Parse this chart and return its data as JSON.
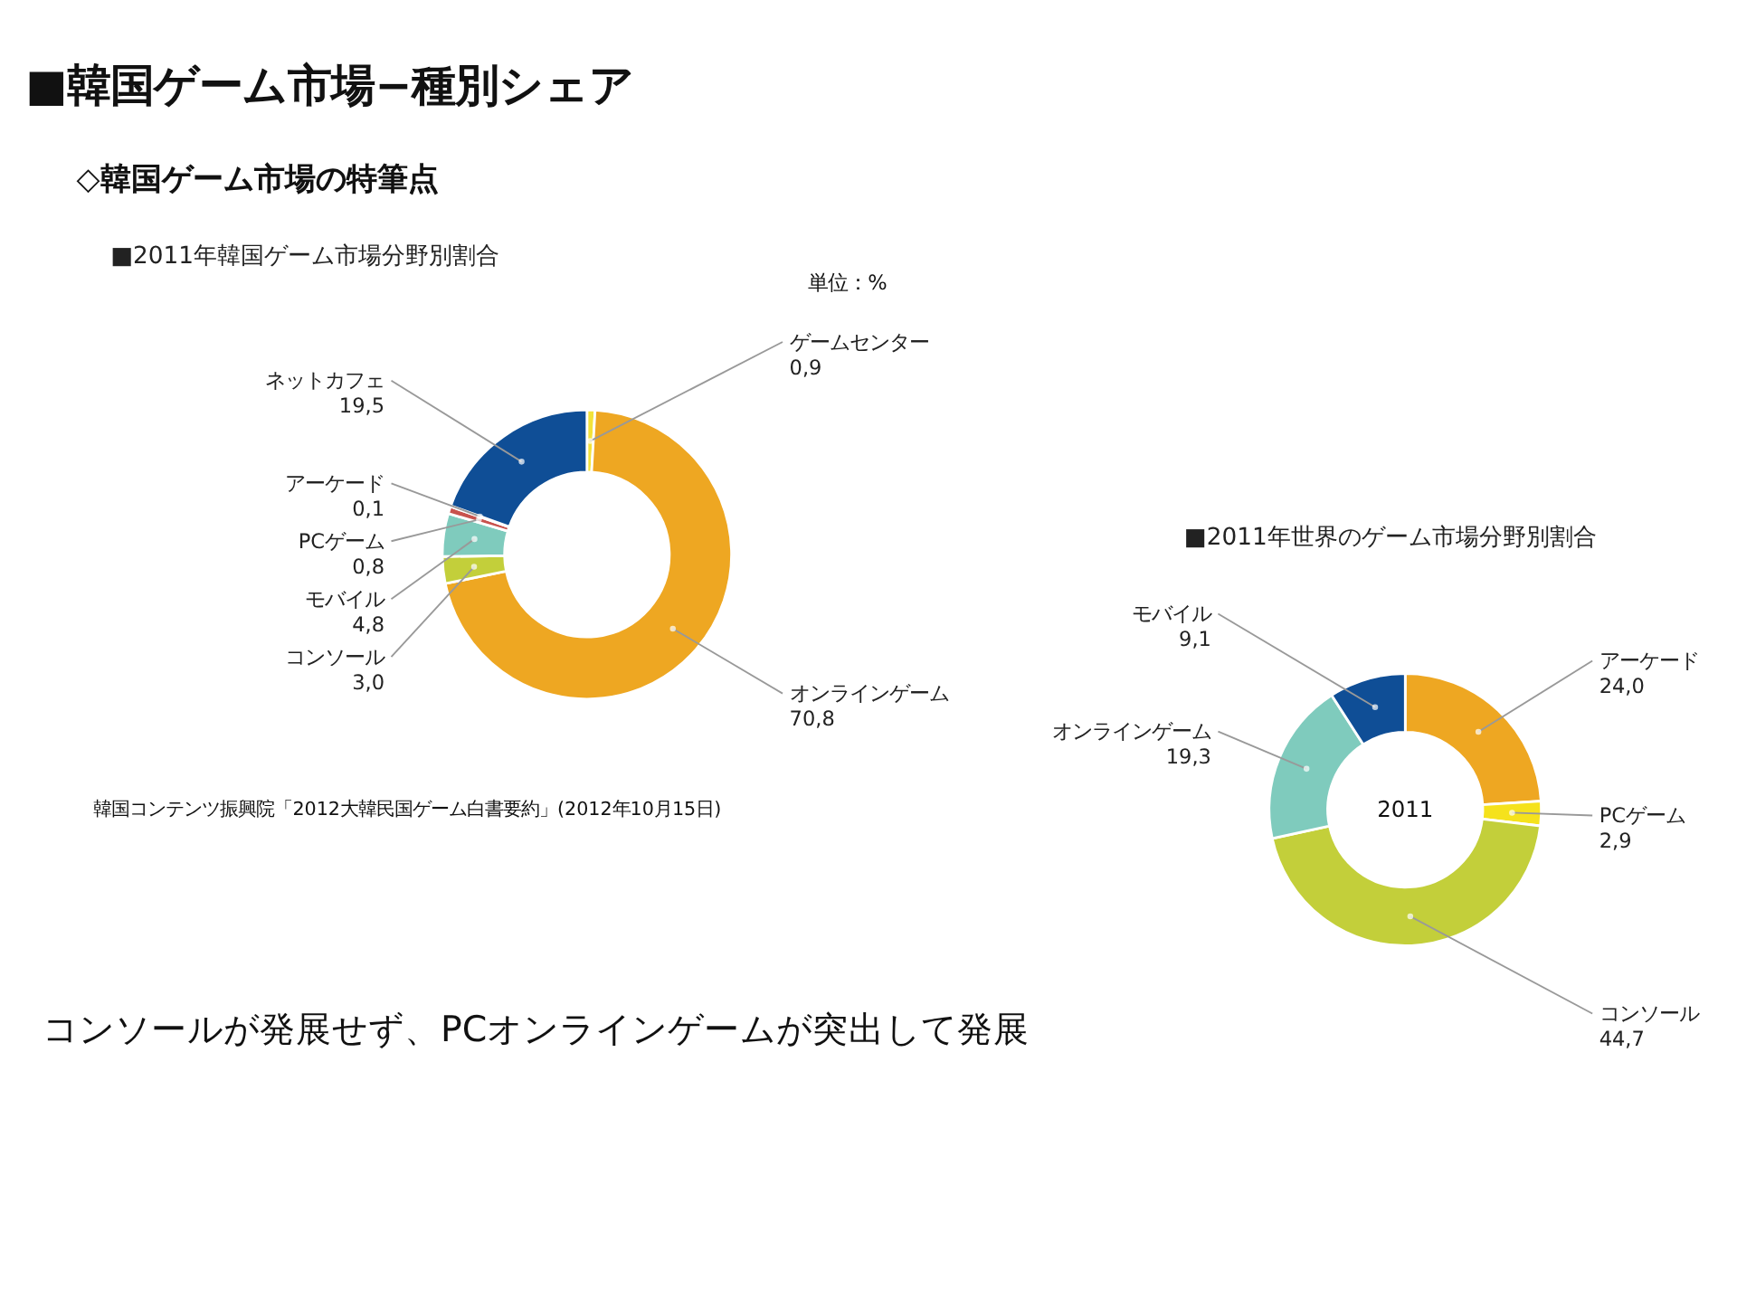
{
  "chart_data": [
    {
      "type": "donut",
      "title": "■2011年韓国ゲーム市場分野別割合",
      "categories": [
        "ゲームセンター",
        "オンラインゲーム",
        "コンソール",
        "モバイル",
        "PCゲーム",
        "アーケード",
        "ネットカフェ"
      ],
      "values": [
        0.9,
        70.8,
        3.0,
        4.8,
        0.8,
        0.1,
        19.5
      ],
      "value_labels": [
        "0,9",
        "70,8",
        "3,0",
        "4,8",
        "0,8",
        "0,1",
        "19,5"
      ],
      "colors": [
        "#f2e33a",
        "#eea722",
        "#c3cf3a",
        "#7fcbbd",
        "#c8524d",
        "#9bb4d0",
        "#0f4e96"
      ],
      "annotations": [
        "■韓国ゲーム市場−種別シェア",
        "◇韓国ゲーム市場の特筆点",
        "単位：%",
        "韓国コンテンツ振興院「2012大韓民国ゲーム白書要約」(2012年10月15日)",
        "コンソールが発展せず、PCオンラインゲームが突出して発展"
      ]
    },
    {
      "type": "donut",
      "title": "■2011年世界のゲーム市場分野別割合",
      "categories": [
        "アーケード",
        "PCゲーム",
        "コンソール",
        "オンラインゲーム",
        "モバイル"
      ],
      "values": [
        24.0,
        2.9,
        44.7,
        19.3,
        9.1
      ],
      "value_labels": [
        "24,0",
        "2,9",
        "44,7",
        "19,3",
        "9,1"
      ],
      "colors": [
        "#eea722",
        "#f5e21c",
        "#c3cf3a",
        "#7fcbbd",
        "#0f4e96"
      ],
      "annotations": [
        "2011"
      ]
    }
  ]
}
